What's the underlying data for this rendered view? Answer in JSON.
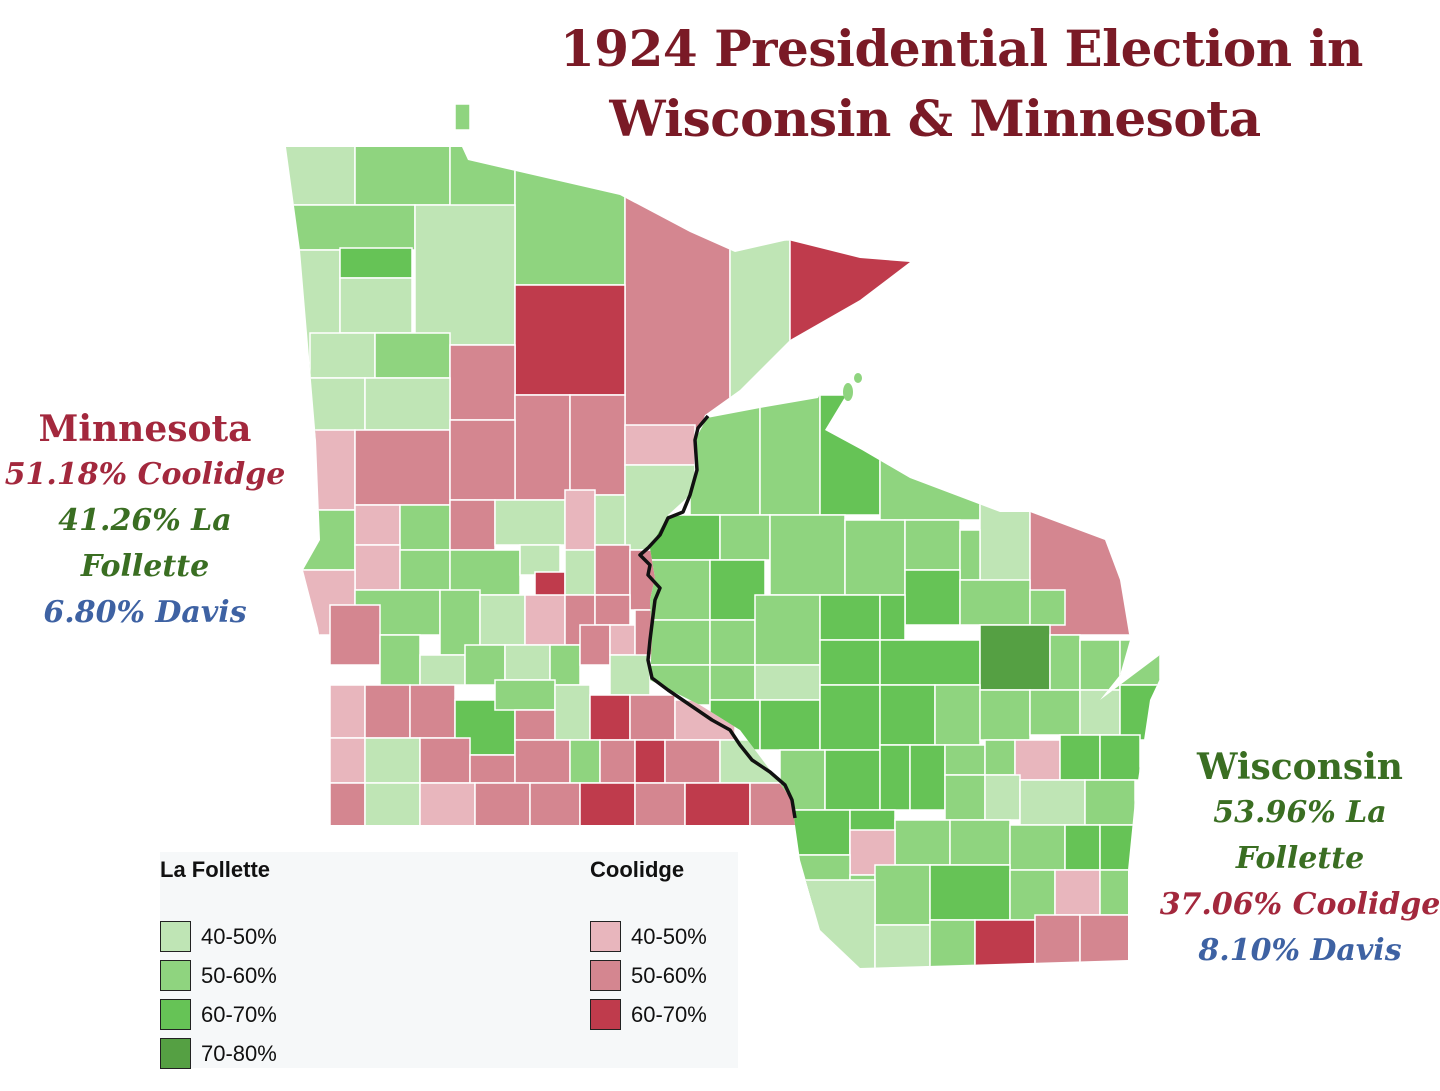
{
  "title": {
    "line1": "1924 Presidential Election in",
    "line2": "Wisconsin & Minnesota"
  },
  "states": {
    "minnesota": {
      "name": "Minnesota",
      "results": [
        {
          "text": "51.18% Coolidge",
          "party": "coolidge"
        },
        {
          "text": "41.26% La Follette",
          "party": "lafollette"
        },
        {
          "text": "6.80% Davis",
          "party": "davis"
        }
      ]
    },
    "wisconsin": {
      "name": "Wisconsin",
      "results": [
        {
          "text": "53.96% La Follette",
          "party": "lafollette"
        },
        {
          "text": "37.06% Coolidge",
          "party": "coolidge"
        },
        {
          "text": "8.10% Davis",
          "party": "davis"
        }
      ]
    }
  },
  "colors": {
    "title": "#7a1a26",
    "coolidge_text": "#a3283d",
    "lafollette_text": "#3a6e22",
    "davis_text": "#3e62a3",
    "state_line": "#111111",
    "county_border": "#ffffff"
  },
  "legend": {
    "lafollette": {
      "title": "La Follette",
      "items": [
        {
          "label": "40-50%",
          "color": "#bfe5b5"
        },
        {
          "label": "50-60%",
          "color": "#8fd47f"
        },
        {
          "label": "60-70%",
          "color": "#66c356"
        },
        {
          "label": "70-80%",
          "color": "#55a043"
        }
      ]
    },
    "coolidge": {
      "title": "Coolidge",
      "items": [
        {
          "label": "40-50%",
          "color": "#e8b6bd"
        },
        {
          "label": "50-60%",
          "color": "#d48690"
        },
        {
          "label": "60-70%",
          "color": "#bf3b4c"
        }
      ]
    }
  }
}
